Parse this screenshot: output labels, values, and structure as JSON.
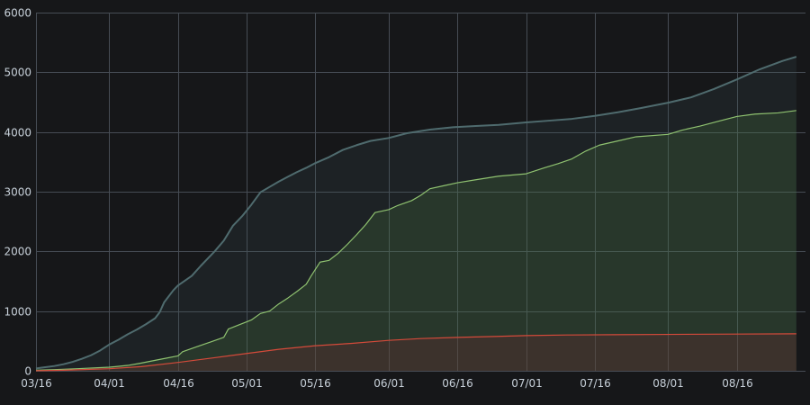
{
  "chart_data": {
    "type": "area",
    "title": "",
    "xlabel": "",
    "ylabel": "",
    "grid": true,
    "legend": "none",
    "x_ticks": [
      "03/16",
      "04/01",
      "04/16",
      "05/01",
      "05/16",
      "06/01",
      "06/16",
      "07/01",
      "07/16",
      "08/01",
      "08/16"
    ],
    "x_tick_dates": [
      "03-16",
      "04-01",
      "04-16",
      "05-01",
      "05-16",
      "06-01",
      "06-16",
      "07-01",
      "07-16",
      "08-01",
      "08-16"
    ],
    "x_range": [
      "03-16",
      "08-31"
    ],
    "y_ticks": [
      0,
      1000,
      2000,
      3000,
      4000,
      5000,
      6000
    ],
    "ylim": [
      0,
      6000
    ],
    "series": [
      {
        "color": "#4f6b6e",
        "fill": "rgba(60,90,95,0.18)",
        "points": [
          [
            "03-16",
            40
          ],
          [
            "03-18",
            60
          ],
          [
            "03-20",
            80
          ],
          [
            "03-22",
            110
          ],
          [
            "03-24",
            150
          ],
          [
            "03-26",
            200
          ],
          [
            "03-28",
            260
          ],
          [
            "03-30",
            340
          ],
          [
            "04-01",
            440
          ],
          [
            "04-03",
            520
          ],
          [
            "04-05",
            610
          ],
          [
            "04-07",
            690
          ],
          [
            "04-09",
            780
          ],
          [
            "04-11",
            880
          ],
          [
            "04-12",
            980
          ],
          [
            "04-13",
            1150
          ],
          [
            "04-15",
            1350
          ],
          [
            "04-16",
            1430
          ],
          [
            "04-19",
            1590
          ],
          [
            "04-21",
            1760
          ],
          [
            "04-24",
            2000
          ],
          [
            "04-26",
            2180
          ],
          [
            "04-28",
            2430
          ],
          [
            "04-30",
            2590
          ],
          [
            "05-02",
            2780
          ],
          [
            "05-04",
            2990
          ],
          [
            "05-06",
            3080
          ],
          [
            "05-08",
            3170
          ],
          [
            "05-10",
            3250
          ],
          [
            "05-12",
            3330
          ],
          [
            "05-14",
            3400
          ],
          [
            "05-16",
            3480
          ],
          [
            "05-19",
            3580
          ],
          [
            "05-22",
            3700
          ],
          [
            "05-25",
            3780
          ],
          [
            "05-28",
            3850
          ],
          [
            "06-01",
            3900
          ],
          [
            "06-05",
            3980
          ],
          [
            "06-10",
            4040
          ],
          [
            "06-15",
            4080
          ],
          [
            "06-20",
            4100
          ],
          [
            "06-25",
            4120
          ],
          [
            "07-01",
            4160
          ],
          [
            "07-06",
            4190
          ],
          [
            "07-11",
            4220
          ],
          [
            "07-16",
            4270
          ],
          [
            "07-21",
            4330
          ],
          [
            "07-26",
            4400
          ],
          [
            "08-01",
            4490
          ],
          [
            "08-06",
            4580
          ],
          [
            "08-11",
            4720
          ],
          [
            "08-16",
            4880
          ],
          [
            "08-21",
            5050
          ],
          [
            "08-26",
            5190
          ],
          [
            "08-29",
            5260
          ]
        ]
      },
      {
        "color": "#8fc270",
        "fill": "rgba(80,130,70,0.22)",
        "points": [
          [
            "03-16",
            10
          ],
          [
            "03-20",
            20
          ],
          [
            "03-25",
            35
          ],
          [
            "04-01",
            60
          ],
          [
            "04-05",
            90
          ],
          [
            "04-08",
            130
          ],
          [
            "04-12",
            190
          ],
          [
            "04-16",
            250
          ],
          [
            "04-17",
            320
          ],
          [
            "04-20",
            400
          ],
          [
            "04-23",
            480
          ],
          [
            "04-26",
            560
          ],
          [
            "04-27",
            700
          ],
          [
            "04-29",
            760
          ],
          [
            "05-02",
            850
          ],
          [
            "05-04",
            960
          ],
          [
            "05-06",
            1000
          ],
          [
            "05-08",
            1120
          ],
          [
            "05-10",
            1220
          ],
          [
            "05-12",
            1330
          ],
          [
            "05-14",
            1450
          ],
          [
            "05-15",
            1580
          ],
          [
            "05-17",
            1820
          ],
          [
            "05-19",
            1850
          ],
          [
            "05-21",
            1970
          ],
          [
            "05-23",
            2120
          ],
          [
            "05-25",
            2280
          ],
          [
            "05-27",
            2450
          ],
          [
            "05-29",
            2650
          ],
          [
            "06-01",
            2700
          ],
          [
            "06-03",
            2770
          ],
          [
            "06-06",
            2850
          ],
          [
            "06-08",
            2940
          ],
          [
            "06-10",
            3050
          ],
          [
            "06-13",
            3100
          ],
          [
            "06-16",
            3150
          ],
          [
            "06-20",
            3200
          ],
          [
            "06-25",
            3260
          ],
          [
            "07-01",
            3300
          ],
          [
            "07-05",
            3400
          ],
          [
            "07-08",
            3470
          ],
          [
            "07-11",
            3550
          ],
          [
            "07-14",
            3680
          ],
          [
            "07-17",
            3780
          ],
          [
            "07-21",
            3850
          ],
          [
            "07-25",
            3920
          ],
          [
            "08-01",
            3960
          ],
          [
            "08-04",
            4030
          ],
          [
            "08-08",
            4100
          ],
          [
            "08-12",
            4180
          ],
          [
            "08-16",
            4260
          ],
          [
            "08-20",
            4300
          ],
          [
            "08-25",
            4320
          ],
          [
            "08-29",
            4360
          ]
        ]
      },
      {
        "color": "#d44a3a",
        "fill": "rgba(110,40,45,0.30)",
        "points": [
          [
            "03-16",
            2
          ],
          [
            "03-22",
            10
          ],
          [
            "04-01",
            35
          ],
          [
            "04-08",
            70
          ],
          [
            "04-16",
            140
          ],
          [
            "04-24",
            220
          ],
          [
            "05-01",
            290
          ],
          [
            "05-08",
            360
          ],
          [
            "05-16",
            420
          ],
          [
            "05-24",
            460
          ],
          [
            "06-01",
            510
          ],
          [
            "06-08",
            540
          ],
          [
            "06-16",
            560
          ],
          [
            "06-24",
            575
          ],
          [
            "07-01",
            590
          ],
          [
            "07-10",
            600
          ],
          [
            "07-20",
            605
          ],
          [
            "08-01",
            610
          ],
          [
            "08-16",
            615
          ],
          [
            "08-29",
            620
          ]
        ]
      }
    ]
  }
}
